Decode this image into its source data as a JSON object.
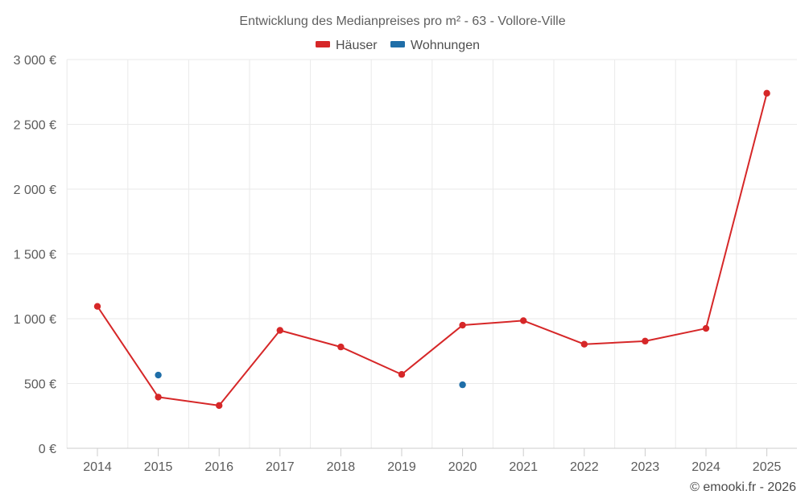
{
  "chart_data": {
    "type": "line",
    "title": "Entwicklung des Medianpreises pro m² - 63 - Vollore-Ville",
    "categories": [
      "2014",
      "2015",
      "2016",
      "2017",
      "2018",
      "2019",
      "2020",
      "2021",
      "2022",
      "2023",
      "2024",
      "2025"
    ],
    "series": [
      {
        "name": "Häuser",
        "color": "#d62728",
        "values": [
          1095,
          395,
          330,
          910,
          782,
          570,
          950,
          985,
          803,
          827,
          925,
          2740
        ]
      },
      {
        "name": "Wohnungen",
        "color": "#1f6ea8",
        "values": [
          null,
          565,
          null,
          null,
          null,
          null,
          490,
          null,
          null,
          null,
          null,
          null
        ]
      }
    ],
    "ylim": [
      0,
      3000
    ],
    "yticks": [
      0,
      500,
      1000,
      1500,
      2000,
      2500,
      3000
    ],
    "ytick_labels": [
      "0 €",
      "500 €",
      "1 000 €",
      "1 500 €",
      "2 000 €",
      "2 500 €",
      "3 000 €"
    ],
    "grid": true,
    "legend_position": "top-center",
    "credits": "© emooki.fr - 2026"
  }
}
